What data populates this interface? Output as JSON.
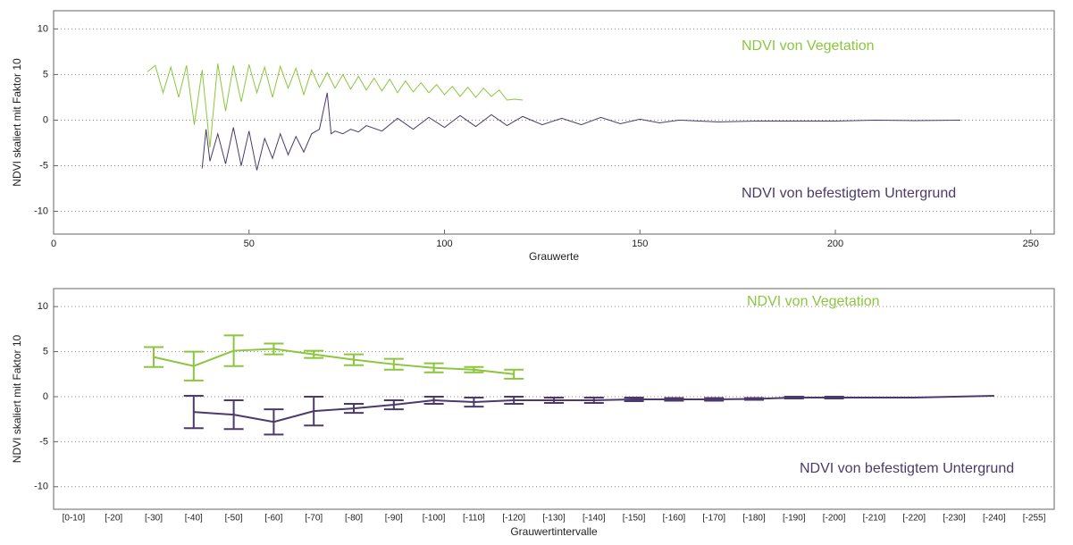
{
  "chart_data": [
    {
      "type": "line",
      "xlabel": "Grauwerte",
      "ylabel": "NDVI skaliert mit Faktor 10",
      "xlim": [
        0,
        256
      ],
      "xticks": [
        0,
        50,
        100,
        150,
        200,
        250
      ],
      "ylim": [
        -12.5,
        12
      ],
      "yticks": [
        -10,
        -5,
        0,
        5,
        10
      ],
      "grid": true,
      "annotations": [
        {
          "text": "NDVI von Vegetation",
          "color": "#8cc63e"
        },
        {
          "text": "NDVI von befestigtem Untergrund",
          "color": "#4b3a6b"
        }
      ],
      "series": [
        {
          "name": "NDVI von Vegetation",
          "color": "#8cc63e",
          "x": [
            24,
            26,
            28,
            30,
            32,
            34,
            36,
            38,
            40,
            42,
            44,
            46,
            48,
            50,
            52,
            54,
            56,
            58,
            60,
            62,
            64,
            66,
            68,
            70,
            72,
            74,
            76,
            78,
            80,
            82,
            84,
            86,
            88,
            90,
            92,
            94,
            96,
            98,
            100,
            102,
            104,
            106,
            108,
            110,
            112,
            114,
            116,
            118,
            120
          ],
          "values": [
            5.3,
            6.0,
            3.0,
            5.8,
            2.5,
            6.0,
            -0.5,
            5.5,
            -3.0,
            6.2,
            1.0,
            6.0,
            2.0,
            6.1,
            3.0,
            5.8,
            2.5,
            5.9,
            3.5,
            5.7,
            2.8,
            5.5,
            3.6,
            5.2,
            3.5,
            5.0,
            3.4,
            4.8,
            3.3,
            4.6,
            3.2,
            4.5,
            3.0,
            4.3,
            3.1,
            4.1,
            3.0,
            3.9,
            2.8,
            3.7,
            2.6,
            3.6,
            2.5,
            3.5,
            2.6,
            3.3,
            2.2,
            2.3,
            2.2
          ]
        },
        {
          "name": "NDVI von befestigtem Untergrund",
          "color": "#4b3a6b",
          "x": [
            38,
            39,
            40,
            42,
            44,
            46,
            48,
            50,
            52,
            54,
            56,
            58,
            60,
            62,
            64,
            66,
            68,
            70,
            71,
            72,
            74,
            76,
            78,
            80,
            84,
            88,
            92,
            96,
            100,
            104,
            108,
            112,
            116,
            120,
            125,
            130,
            135,
            140,
            145,
            150,
            155,
            160,
            170,
            180,
            190,
            200,
            210,
            220,
            232
          ],
          "values": [
            -5.3,
            -1.0,
            -4.5,
            -1.5,
            -4.8,
            -0.8,
            -5.0,
            -1.2,
            -5.5,
            -2.0,
            -4.2,
            -1.5,
            -3.8,
            -1.8,
            -3.5,
            -1.5,
            -1.0,
            3.0,
            -1.5,
            -1.2,
            -1.5,
            -1.0,
            -1.3,
            -0.6,
            -1.2,
            0.2,
            -1.0,
            0.3,
            -0.8,
            0.5,
            -0.7,
            0.6,
            -0.6,
            0.4,
            -0.5,
            0.2,
            -0.5,
            0.3,
            -0.4,
            0.1,
            -0.3,
            0.0,
            -0.2,
            -0.1,
            -0.1,
            -0.1,
            0.0,
            -0.05,
            0.0
          ]
        }
      ]
    },
    {
      "type": "errorbar",
      "xlabel": "Grauwertintervalle",
      "ylabel": "NDVI skaliert mit Faktor 10",
      "categories": [
        "[0-10]",
        "[-20]",
        "[-30]",
        "[-40]",
        "[-50]",
        "[-60]",
        "[-70]",
        "[-80]",
        "[-90]",
        "[-100]",
        "[-110]",
        "[-120]",
        "[-130]",
        "[-140]",
        "[-150]",
        "[-160]",
        "[-170]",
        "[-180]",
        "[-190]",
        "[-200]",
        "[-210]",
        "[-220]",
        "[-230]",
        "[-240]",
        "[-255]"
      ],
      "ylim": [
        -12.5,
        12
      ],
      "yticks": [
        -10,
        -5,
        0,
        5,
        10
      ],
      "grid": true,
      "annotations": [
        {
          "text": "NDVI von Vegetation",
          "color": "#8cc63e"
        },
        {
          "text": "NDVI von befestigtem Untergrund",
          "color": "#4b3a6b"
        }
      ],
      "series": [
        {
          "name": "NDVI von Vegetation",
          "color": "#8cc63e",
          "values": [
            null,
            null,
            4.4,
            3.4,
            5.1,
            5.3,
            4.7,
            4.1,
            3.6,
            3.2,
            3.0,
            2.5,
            null,
            null,
            null,
            null,
            null,
            null,
            null,
            null,
            null,
            null,
            null,
            null,
            null
          ],
          "errors": [
            null,
            null,
            1.1,
            1.6,
            1.7,
            0.6,
            0.4,
            0.6,
            0.6,
            0.5,
            0.3,
            0.5,
            null,
            null,
            null,
            null,
            null,
            null,
            null,
            null,
            null,
            null,
            null,
            null,
            null
          ]
        },
        {
          "name": "NDVI von befestigtem Untergrund",
          "color": "#4b3a6b",
          "values": [
            null,
            null,
            null,
            -1.7,
            -2.0,
            -2.8,
            -1.6,
            -1.3,
            -0.9,
            -0.4,
            -0.6,
            -0.4,
            -0.4,
            -0.4,
            -0.3,
            -0.3,
            -0.3,
            -0.25,
            -0.1,
            -0.1,
            -0.1,
            -0.1,
            0.0,
            0.1,
            null
          ],
          "errors": [
            null,
            null,
            null,
            1.8,
            1.6,
            1.4,
            1.6,
            0.5,
            0.5,
            0.4,
            0.5,
            0.4,
            0.3,
            0.3,
            0.2,
            0.15,
            0.15,
            0.1,
            0.1,
            0.1,
            null,
            null,
            null,
            null,
            null
          ]
        }
      ]
    }
  ]
}
